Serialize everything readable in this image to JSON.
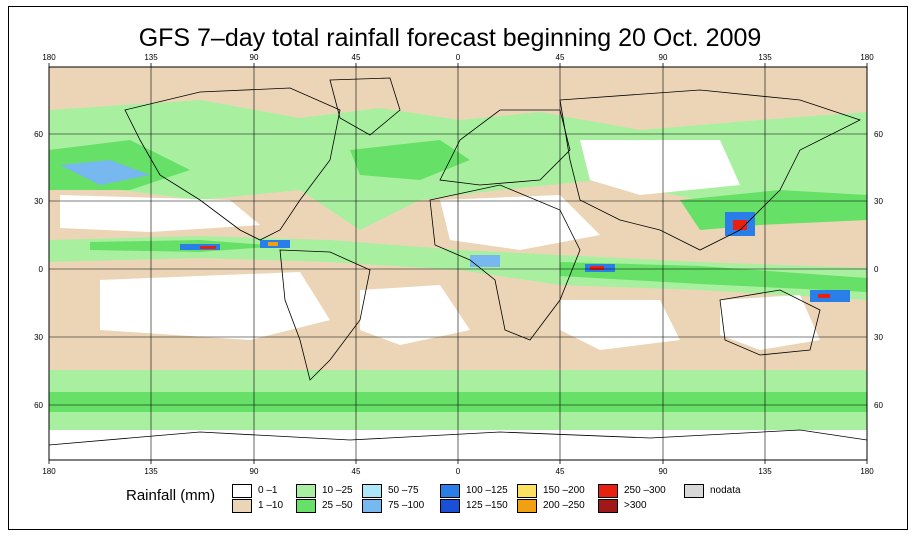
{
  "title": "GFS 7–day total rainfall forecast beginning 20 Oct. 2009",
  "axes": {
    "lon_top": [
      "180",
      "135",
      "90",
      "45",
      "0",
      "45",
      "90",
      "135",
      "180"
    ],
    "lon_bottom": [
      "180",
      "135",
      "90",
      "45",
      "0",
      "45",
      "90",
      "135",
      "180"
    ],
    "lat_left": [
      "60",
      "30",
      "0",
      "30",
      "60"
    ],
    "lat_right": [
      "60",
      "30",
      "0",
      "30",
      "60"
    ]
  },
  "legend": {
    "title": "Rainfall (mm)",
    "items": [
      {
        "label": "0 –1",
        "color": "#ffffff"
      },
      {
        "label": "1 –10",
        "color": "#ecd5b6"
      },
      {
        "label": "10 –25",
        "color": "#a8f0a0"
      },
      {
        "label": "25 –50",
        "color": "#66e066"
      },
      {
        "label": "50 –75",
        "color": "#aee8f8"
      },
      {
        "label": "75 –100",
        "color": "#78b8f0"
      },
      {
        "label": "100 –125",
        "color": "#2a7ee8"
      },
      {
        "label": "125 –150",
        "color": "#1a50d8"
      },
      {
        "label": "150 –200",
        "color": "#ffe060"
      },
      {
        "label": "200 –250",
        "color": "#f0a010"
      },
      {
        "label": "250 –300",
        "color": "#e82010"
      },
      {
        "label": ">300",
        "color": "#a01818"
      },
      {
        "label": "nodata",
        "color": "#d8d8d8"
      }
    ]
  }
}
